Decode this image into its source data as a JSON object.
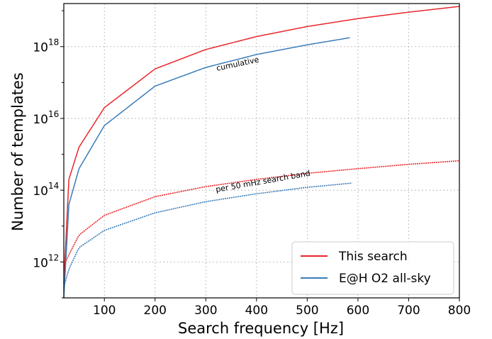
{
  "chart_data": {
    "type": "line",
    "xlabel": "Search frequency [Hz]",
    "ylabel": "Number of templates",
    "xlim": [
      20,
      800
    ],
    "ylim_log10": [
      11,
      19.2
    ],
    "yscale": "log",
    "grid": true,
    "x_ticks": [
      100,
      200,
      300,
      400,
      500,
      600,
      700,
      800
    ],
    "x_tick_labels": [
      "100",
      "200",
      "300",
      "400",
      "500",
      "600",
      "700",
      "800"
    ],
    "y_ticks_log10": [
      12,
      14,
      16,
      18
    ],
    "y_tick_labels": [
      {
        "base": "10",
        "exp": "12"
      },
      {
        "base": "10",
        "exp": "14"
      },
      {
        "base": "10",
        "exp": "16"
      },
      {
        "base": "10",
        "exp": "18"
      }
    ],
    "annotations": [
      "cumulative",
      "per 50 mHz search band"
    ],
    "legend": {
      "position": "lower-right",
      "entries": [
        "This search",
        "E@H O2 all-sky"
      ]
    },
    "colors": {
      "this_search": "#e8262a",
      "eh_o2": "#3a7cb8"
    },
    "series": [
      {
        "name": "This search",
        "group": "cumulative",
        "color": "#e8262a",
        "x": [
          20,
          30,
          50,
          100,
          200,
          300,
          400,
          500,
          600,
          700,
          800
        ],
        "log10_y": [
          11.4,
          14.3,
          15.2,
          16.3,
          17.38,
          17.92,
          18.28,
          18.56,
          18.78,
          18.96,
          19.12
        ]
      },
      {
        "name": "E@H O2 all-sky",
        "group": "cumulative",
        "color": "#3a7cb8",
        "x": [
          20,
          30,
          50,
          100,
          200,
          300,
          400,
          500,
          585
        ],
        "log10_y": [
          11.0,
          13.6,
          14.6,
          15.8,
          16.9,
          17.42,
          17.78,
          18.05,
          18.25
        ]
      },
      {
        "name": "This search",
        "group": "per 50 mHz search band",
        "color": "#e8262a",
        "x": [
          20,
          30,
          50,
          100,
          200,
          300,
          400,
          500,
          600,
          700,
          800
        ],
        "log10_y": [
          11.88,
          12.2,
          12.75,
          13.3,
          13.82,
          14.1,
          14.3,
          14.47,
          14.6,
          14.72,
          14.82
        ]
      },
      {
        "name": "E@H O2 all-sky",
        "group": "per 50 mHz search band",
        "color": "#3a7cb8",
        "x": [
          20,
          30,
          50,
          100,
          200,
          300,
          400,
          500,
          590
        ],
        "log10_y": [
          11.3,
          11.8,
          12.4,
          12.88,
          13.37,
          13.68,
          13.9,
          14.08,
          14.2
        ]
      }
    ]
  }
}
